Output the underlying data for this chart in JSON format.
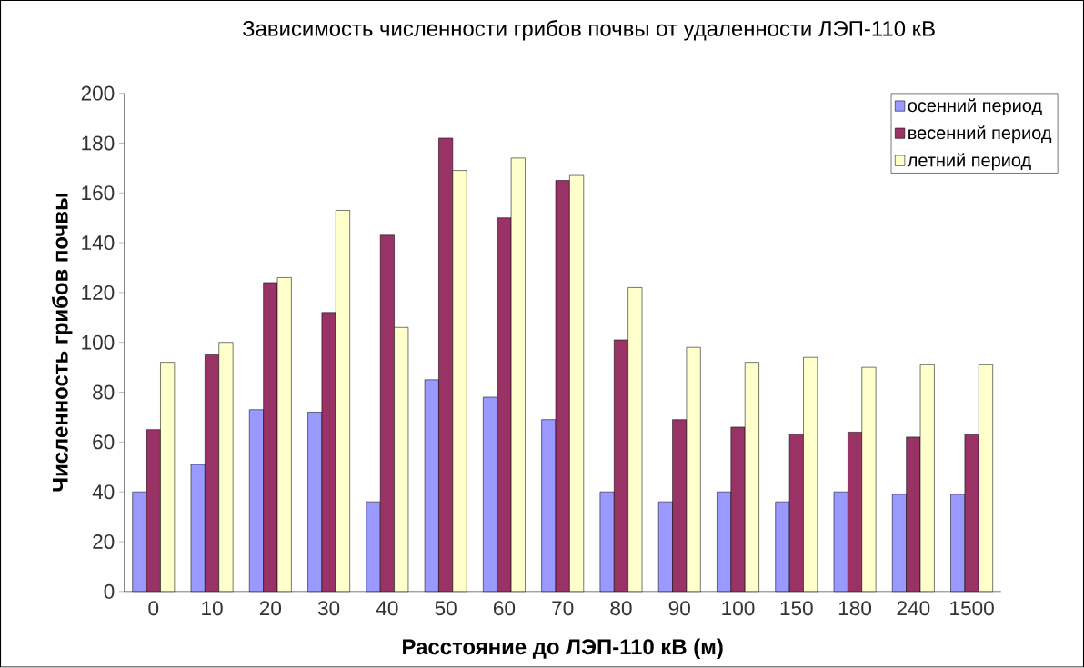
{
  "chart_data": {
    "type": "bar",
    "title": "Зависимость численности грибов почвы от удаленности ЛЭП-110 кВ",
    "xlabel": "Расстояние до ЛЭП-110 кВ (м)",
    "ylabel": "Численность грибов почвы",
    "categories": [
      "0",
      "10",
      "20",
      "30",
      "40",
      "50",
      "60",
      "70",
      "80",
      "90",
      "100",
      "150",
      "180",
      "240",
      "1500"
    ],
    "series": [
      {
        "name": "осенний период",
        "color": "#9999ff",
        "values": [
          40,
          51,
          73,
          72,
          36,
          85,
          78,
          69,
          40,
          36,
          40,
          36,
          40,
          39,
          39
        ]
      },
      {
        "name": "весенний период",
        "color": "#993366",
        "values": [
          65,
          95,
          124,
          112,
          143,
          182,
          150,
          165,
          101,
          69,
          66,
          63,
          64,
          62,
          63
        ]
      },
      {
        "name": "летний период",
        "color": "#ffffcc",
        "values": [
          92,
          100,
          126,
          153,
          106,
          169,
          174,
          167,
          122,
          98,
          92,
          94,
          90,
          91,
          91
        ]
      }
    ],
    "ylim": [
      0,
      200
    ],
    "yticks": [
      0,
      20,
      40,
      60,
      80,
      100,
      120,
      140,
      160,
      180,
      200
    ],
    "grid": false,
    "legend": "top right"
  }
}
